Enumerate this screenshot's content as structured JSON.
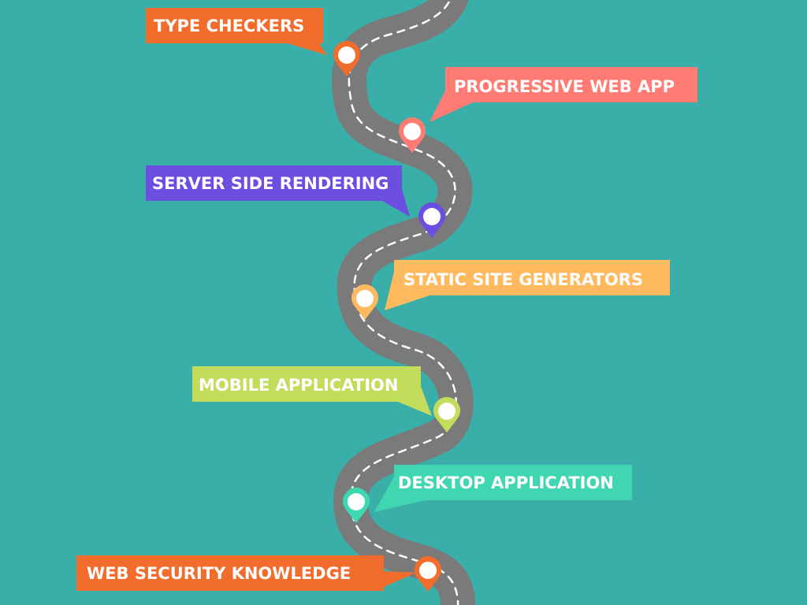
{
  "background_color": "#3aafa9",
  "road": {
    "asphalt_color": "#7a7a7a",
    "lane_marking_color": "#ffffff"
  },
  "milestones": [
    {
      "label": "TYPE CHECKERS",
      "color": "#f26c2b"
    },
    {
      "label": "PROGRESSIVE WEB APP",
      "color": "#ff7b73"
    },
    {
      "label": "SERVER SIDE RENDERING",
      "color": "#6c4fe0"
    },
    {
      "label": "STATIC SITE GENERATORS",
      "color": "#ffb95e"
    },
    {
      "label": "MOBILE APPLICATION",
      "color": "#c4dc5c"
    },
    {
      "label": "DESKTOP APPLICATION",
      "color": "#3fd6b1"
    },
    {
      "label": "WEB SECURITY KNOWLEDGE",
      "color": "#f26c2b"
    }
  ]
}
